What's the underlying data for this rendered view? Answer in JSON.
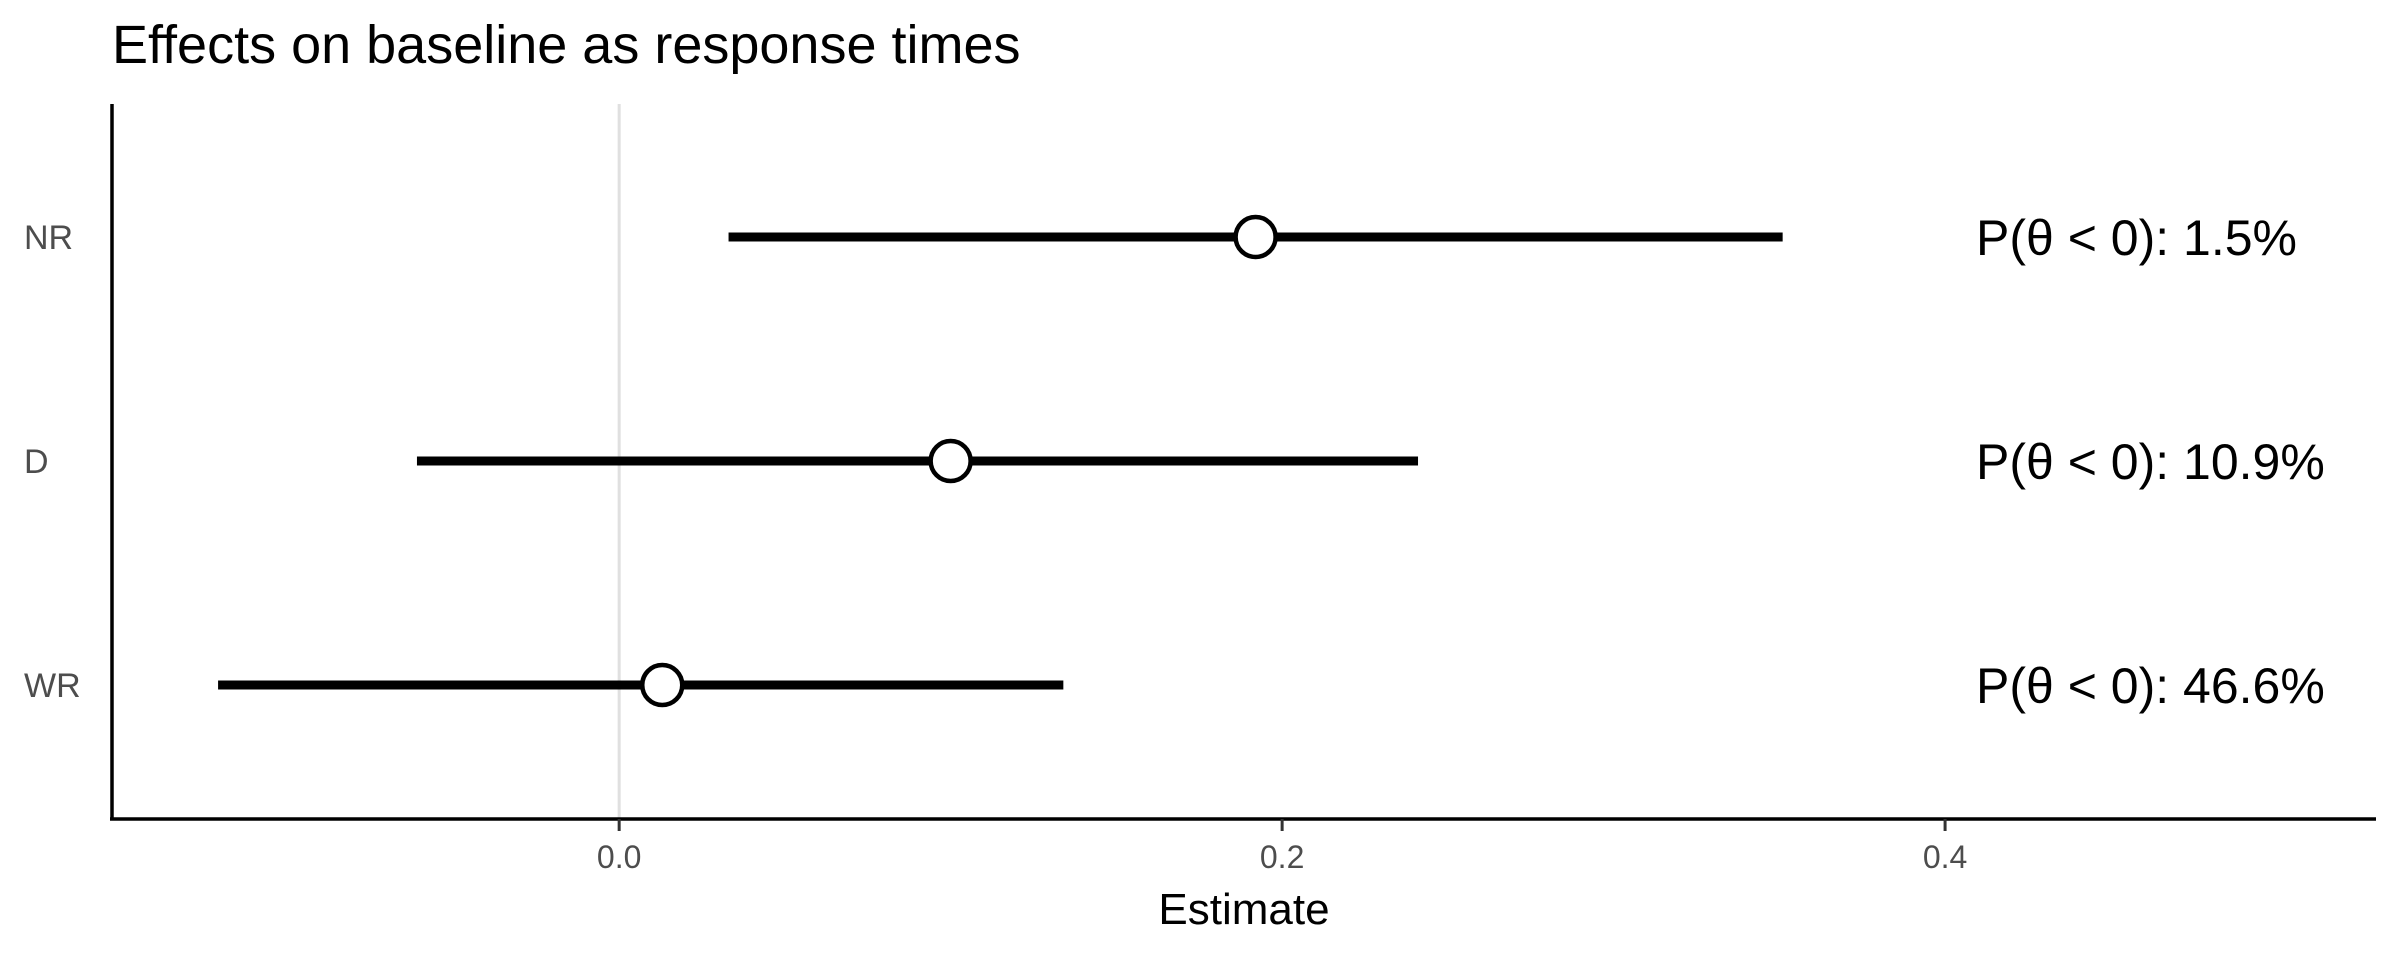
{
  "chart_data": {
    "type": "forest",
    "title": "Effects on baseline as response times",
    "xlabel": "Estimate",
    "ylabel": "",
    "xlim": [
      -0.153,
      0.53
    ],
    "xticks": [
      0.0,
      0.2,
      0.4
    ],
    "xtick_labels": [
      "0.0",
      "0.2",
      "0.4"
    ],
    "reference_line": 0.0,
    "grid": false,
    "legend": "none",
    "rows": [
      {
        "label": "NR",
        "estimate": 0.192,
        "lower": 0.033,
        "upper": 0.351,
        "annotation": "P(θ < 0): 1.5%"
      },
      {
        "label": "D",
        "estimate": 0.1,
        "lower": -0.061,
        "upper": 0.241,
        "annotation": "P(θ < 0): 10.9%"
      },
      {
        "label": "WR",
        "estimate": 0.013,
        "lower": -0.121,
        "upper": 0.134,
        "annotation": "P(θ < 0): 46.6%"
      }
    ],
    "colors": {
      "interval": "#000000",
      "point_fill": "#ffffff",
      "point_stroke": "#000000",
      "reference_line": "#e0e0e0"
    }
  }
}
